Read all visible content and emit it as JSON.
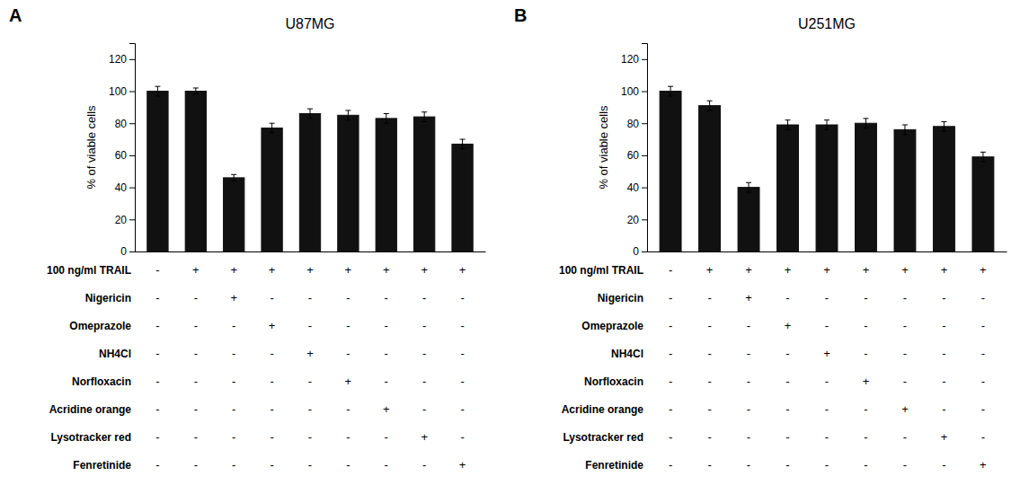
{
  "chart_data": [
    {
      "type": "bar",
      "title": "U87MG",
      "annotations": [
        "A"
      ],
      "ylabel": "% of viable cells",
      "categories": [
        null,
        null,
        null,
        null,
        null,
        null,
        null,
        null,
        null
      ],
      "values": [
        100,
        100,
        46,
        77,
        86,
        85,
        83,
        84,
        67
      ],
      "errors": [
        3,
        2,
        2,
        3,
        3,
        3,
        3,
        3,
        3
      ],
      "color": "#111111",
      "ylim": [
        0,
        130
      ],
      "yticks": [
        0,
        20,
        40,
        60,
        80,
        100,
        120
      ],
      "grid": false,
      "tick_labels": "y",
      "row_labels": [
        "100 ng/ml TRAIL",
        "Nigericin",
        "Omeprazole",
        "NH4Cl",
        "Norfloxacin",
        "Acridine orange",
        "Lysotracker red",
        "Fenretinide"
      ],
      "cells": [
        [
          "-",
          "+",
          "+",
          "+",
          "+",
          "+",
          "+",
          "+",
          "+"
        ],
        [
          "-",
          "-",
          "+",
          "-",
          "-",
          "-",
          "-",
          "-",
          "-"
        ],
        [
          "-",
          "-",
          "-",
          "+",
          "-",
          "-",
          "-",
          "-",
          "-"
        ],
        [
          "-",
          "-",
          "-",
          "-",
          "+",
          "-",
          "-",
          "-",
          "-"
        ],
        [
          "-",
          "-",
          "-",
          "-",
          "-",
          "+",
          "-",
          "-",
          "-"
        ],
        [
          "-",
          "-",
          "-",
          "-",
          "-",
          "-",
          "+",
          "-",
          "-"
        ],
        [
          "-",
          "-",
          "-",
          "-",
          "-",
          "-",
          "-",
          "+",
          "-"
        ],
        [
          "-",
          "-",
          "-",
          "-",
          "-",
          "-",
          "-",
          "-",
          "+"
        ]
      ]
    },
    {
      "type": "bar",
      "title": "U251MG",
      "annotations": [
        "B"
      ],
      "ylabel": "% of viable cells",
      "categories": [
        null,
        null,
        null,
        null,
        null,
        null,
        null,
        null,
        null
      ],
      "values": [
        100,
        91,
        40,
        79,
        79,
        80,
        76,
        78,
        59
      ],
      "errors": [
        3,
        3,
        3,
        3,
        3,
        3,
        3,
        3,
        3
      ],
      "color": "#111111",
      "ylim": [
        0,
        130
      ],
      "yticks": [
        0,
        20,
        40,
        60,
        80,
        100,
        120
      ],
      "grid": false,
      "tick_labels": "y",
      "row_labels": [
        "100 ng/ml TRAIL",
        "Nigericin",
        "Omeprazole",
        "NH4Cl",
        "Norfloxacin",
        "Acridine orange",
        "Lysotracker red",
        "Fenretinide"
      ],
      "cells": [
        [
          "-",
          "+",
          "+",
          "+",
          "+",
          "+",
          "+",
          "+",
          "+"
        ],
        [
          "-",
          "-",
          "+",
          "-",
          "-",
          "-",
          "-",
          "-",
          "-"
        ],
        [
          "-",
          "-",
          "-",
          "+",
          "-",
          "-",
          "-",
          "-",
          "-"
        ],
        [
          "-",
          "-",
          "-",
          "-",
          "+",
          "-",
          "-",
          "-",
          "-"
        ],
        [
          "-",
          "-",
          "-",
          "-",
          "-",
          "+",
          "-",
          "-",
          "-"
        ],
        [
          "-",
          "-",
          "-",
          "-",
          "-",
          "-",
          "+",
          "-",
          "-"
        ],
        [
          "-",
          "-",
          "-",
          "-",
          "-",
          "-",
          "-",
          "+",
          "-"
        ],
        [
          "-",
          "-",
          "-",
          "-",
          "-",
          "-",
          "-",
          "-",
          "+"
        ]
      ]
    }
  ]
}
